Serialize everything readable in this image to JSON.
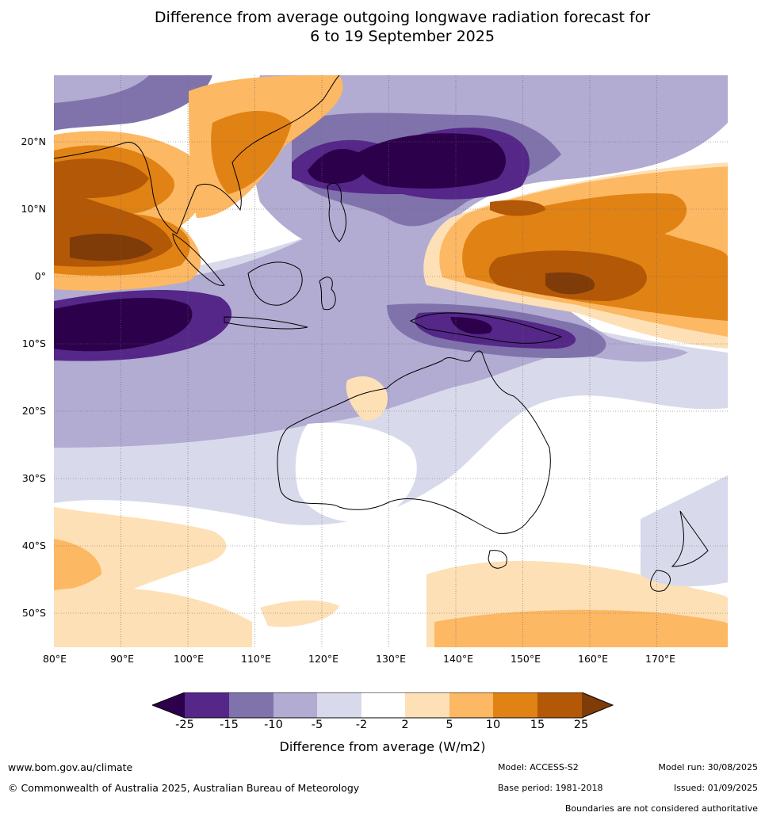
{
  "title_line1": "Difference from average outgoing longwave radiation forecast for",
  "title_line2": "6 to 19 September 2025",
  "lat_ticks": [
    "20°N",
    "10°N",
    "0°",
    "10°S",
    "20°S",
    "30°S",
    "40°S",
    "50°S"
  ],
  "lon_ticks": [
    "80°E",
    "90°E",
    "100°E",
    "110°E",
    "120°E",
    "130°E",
    "140°E",
    "150°E",
    "160°E",
    "170°E"
  ],
  "colorbar": {
    "labels": [
      "-25",
      "-15",
      "-10",
      "-5",
      "-2",
      "2",
      "5",
      "10",
      "15",
      "25"
    ],
    "colors": [
      "#2d004b",
      "#542788",
      "#8073ac",
      "#b2abd2",
      "#d8daeb",
      "#ffffff",
      "#fee0b6",
      "#fdb863",
      "#e08214",
      "#b35806",
      "#7f3b08"
    ],
    "title": "Difference from average (W/m2)"
  },
  "footer": {
    "website": "www.bom.gov.au/climate",
    "copyright": "© Commonwealth of Australia 2025, Australian Bureau of Meteorology",
    "model": "Model: ACCESS-S2",
    "model_run": "Model run: 30/08/2025",
    "base_period": "Base period: 1981-2018",
    "issued": "Issued: 01/09/2025",
    "disclaimer": "Boundaries are not considered authoritative"
  }
}
